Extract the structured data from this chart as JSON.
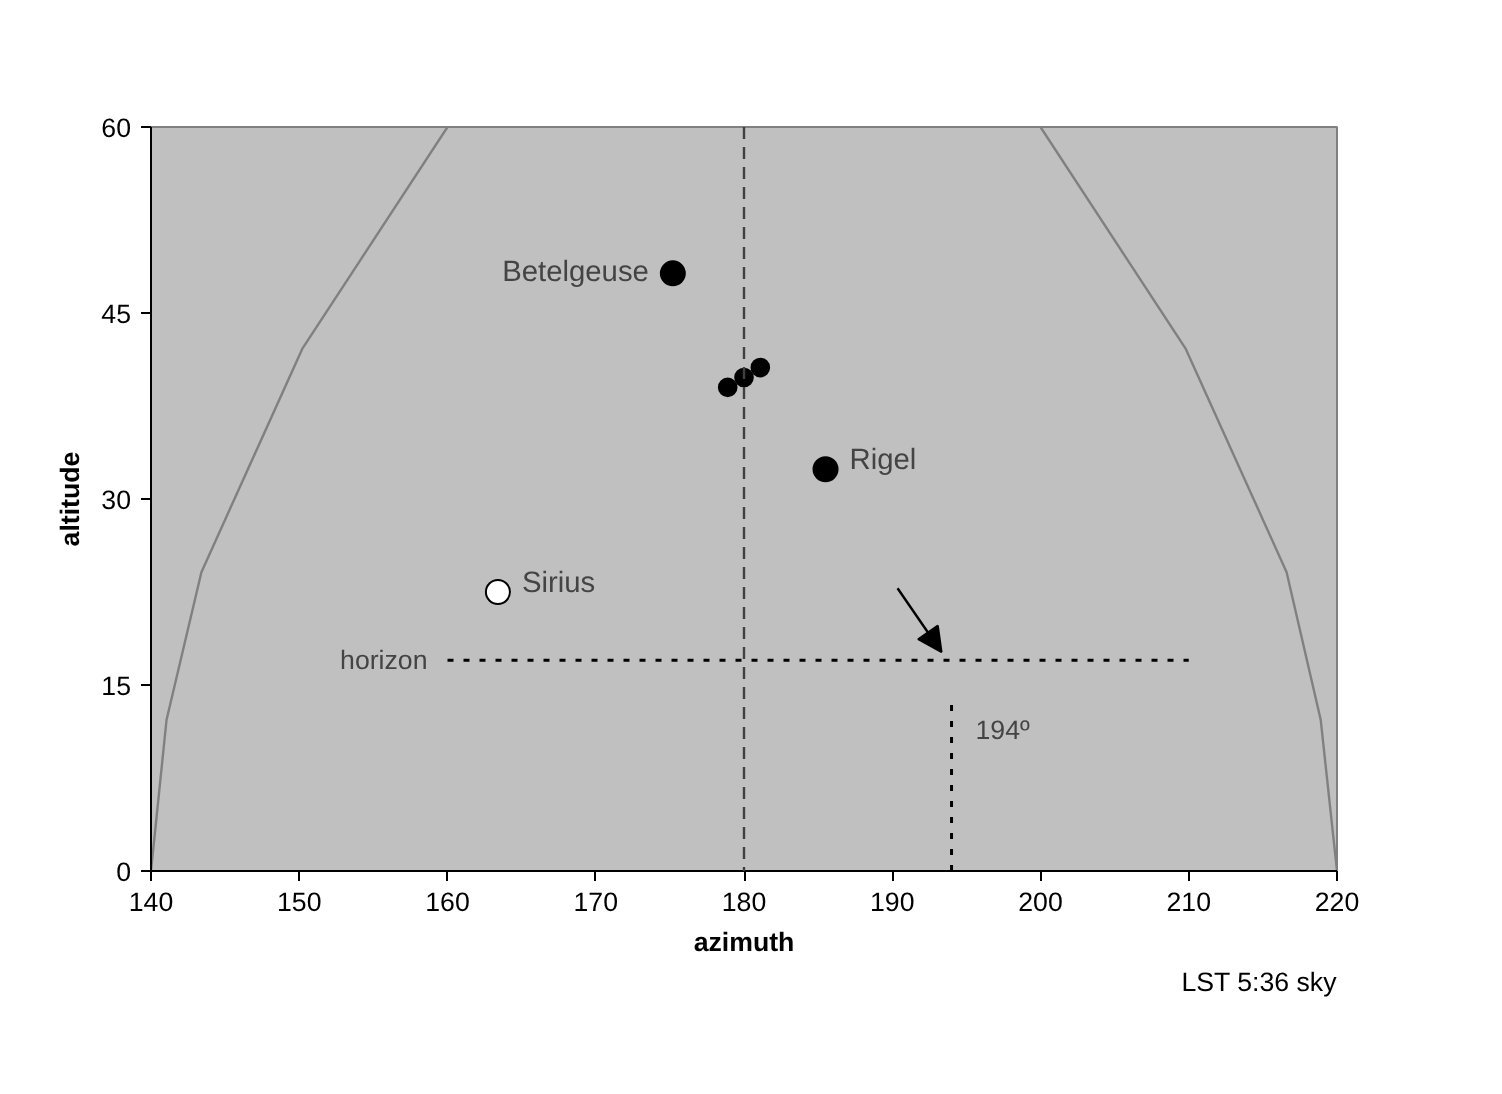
{
  "chart_data": {
    "type": "bubble",
    "xlabel": "azimuth",
    "ylabel": "altitude",
    "xlim": [
      140,
      220
    ],
    "ylim": [
      0,
      60
    ],
    "xticks": [
      140,
      150,
      160,
      170,
      180,
      190,
      200,
      210,
      220
    ],
    "yticks": [
      0,
      15,
      30,
      45,
      60
    ],
    "grid": false,
    "ref_lines": [
      {
        "axis": "x",
        "value": 180,
        "color": "#404040",
        "line_style": "dashed"
      }
    ],
    "annotations": [
      "LST 5:36 sky"
    ],
    "series": [
      {
        "type": "line",
        "color": "#808080",
        "line_style": "solid",
        "x": [
          140,
          141.05,
          143.4,
          150.2,
          160
        ],
        "values": [
          0,
          12.2,
          24.1,
          42.1,
          60
        ]
      },
      {
        "type": "line",
        "color": "#808080",
        "line_style": "solid",
        "x": [
          200,
          209.8,
          216.6,
          218.9,
          220
        ],
        "values": [
          60,
          42.1,
          24.1,
          12.2,
          0
        ]
      },
      {
        "type": "line",
        "name": "horizon",
        "color": "#000000",
        "line_style": "dotted",
        "x": [
          160,
          210
        ],
        "values": [
          17,
          17
        ]
      },
      {
        "type": "line",
        "name": "194º",
        "color": "#000000",
        "line_style": "dotted",
        "x": [
          194,
          194
        ],
        "values": [
          0,
          13.4
        ]
      },
      {
        "name": "Betelgeuse",
        "color": "#000000",
        "x": [
          175.2
        ],
        "values": [
          48.2
        ],
        "sizes": [
          1
        ]
      },
      {
        "color": "#000000",
        "x": [
          178.9,
          180.0,
          181.1
        ],
        "values": [
          39.0,
          39.8,
          40.6
        ],
        "sizes": [
          0.54,
          0.54,
          0.54
        ]
      },
      {
        "name": "Rigel",
        "color": "#000000",
        "x": [
          185.5
        ],
        "values": [
          32.4
        ],
        "sizes": [
          1
        ]
      },
      {
        "name": "Sirius",
        "color": "#ffffff",
        "x": [
          163.4
        ],
        "values": [
          22.5
        ],
        "sizes": [
          1
        ]
      }
    ]
  }
}
